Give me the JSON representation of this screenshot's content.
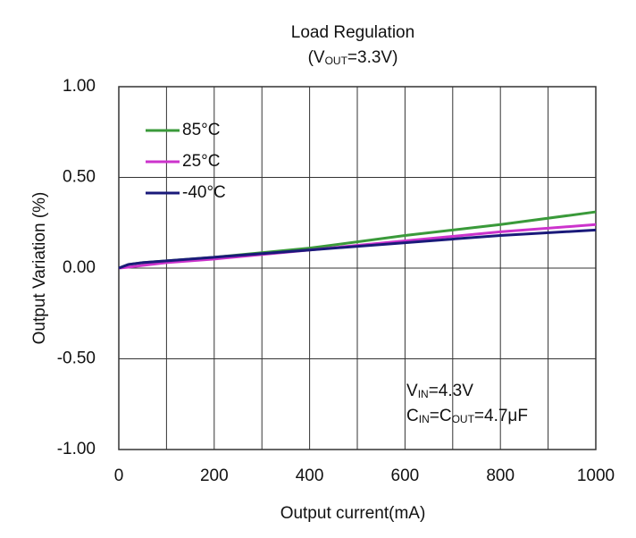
{
  "chart_data": {
    "type": "line",
    "title": "Load Regulation",
    "subtitle": [
      "(V",
      "OUT",
      "=3.3V)"
    ],
    "xlabel": "Output current(mA)",
    "ylabel": "Output Variation (%)",
    "x": [
      0,
      20,
      50,
      100,
      200,
      400,
      600,
      800,
      1000
    ],
    "series": [
      {
        "name": "85°C",
        "color": "#3a9a3a",
        "values": [
          0,
          0.02,
          0.03,
          0.04,
          0.06,
          0.11,
          0.18,
          0.24,
          0.31
        ]
      },
      {
        "name": "25°C",
        "color": "#cc33cc",
        "values": [
          0,
          0.005,
          0.015,
          0.03,
          0.05,
          0.1,
          0.15,
          0.2,
          0.24
        ]
      },
      {
        "name": "-40°C",
        "color": "#1a1a7a",
        "values": [
          0,
          0.02,
          0.03,
          0.04,
          0.06,
          0.1,
          0.14,
          0.18,
          0.21
        ]
      }
    ],
    "xlim": [
      0,
      1000
    ],
    "xticks": [
      0,
      200,
      400,
      600,
      800,
      1000
    ],
    "xgrid": [
      100,
      200,
      300,
      400,
      500,
      600,
      700,
      800,
      900
    ],
    "ylim": [
      -1,
      1
    ],
    "yticks": [
      {
        "value": 1,
        "label": "1.00"
      },
      {
        "value": 0.5,
        "label": "0.50"
      },
      {
        "value": 0,
        "label": "0.00"
      },
      {
        "value": -0.5,
        "label": "-0.50"
      },
      {
        "value": -1,
        "label": "-1.00"
      }
    ],
    "grid": true,
    "legend": "upper left",
    "annotations": [
      [
        "V",
        "IN",
        "=4.3V"
      ],
      [
        "C",
        "IN",
        "=C",
        "OUT",
        "=4.7μF"
      ]
    ]
  }
}
